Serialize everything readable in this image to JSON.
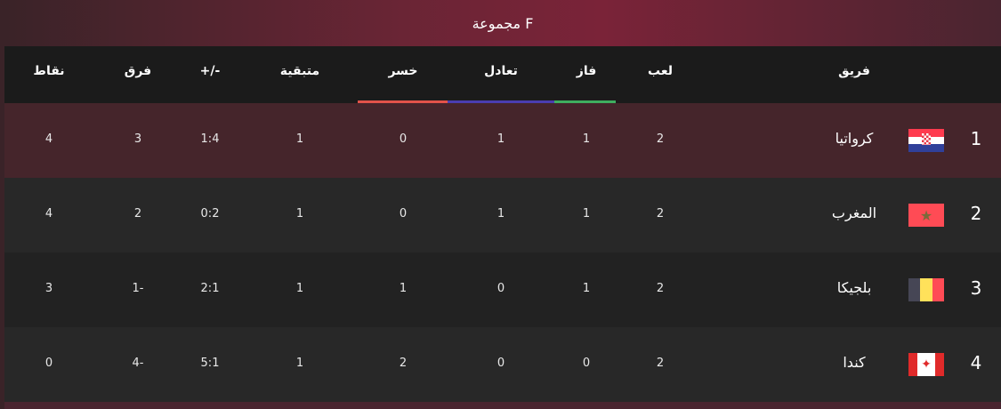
{
  "title": "مجموعة F",
  "headers": {
    "team": "فريق",
    "played": "لعب",
    "won": "فاز",
    "drawn": "تعادل",
    "lost": "خسر",
    "remaining": "متبقية",
    "goals": "+/-",
    "diff": "فرق",
    "points": "نقاط"
  },
  "underline_colors": {
    "lost": "#e2534a",
    "drawn": "#4a3db0",
    "won": "#3fae5f"
  },
  "row_colors": {
    "highlight": "#45252b",
    "even": "#282828",
    "odd": "#222222"
  },
  "rows": [
    {
      "rank": "1",
      "team": "كرواتيا",
      "flag": "croatia-flag",
      "played": "2",
      "won": "1",
      "drawn": "1",
      "lost": "0",
      "remaining": "1",
      "goals": "1:4",
      "diff": "3",
      "points": "4"
    },
    {
      "rank": "2",
      "team": "المغرب",
      "flag": "morocco-flag",
      "played": "2",
      "won": "1",
      "drawn": "1",
      "lost": "0",
      "remaining": "1",
      "goals": "0:2",
      "diff": "2",
      "points": "4"
    },
    {
      "rank": "3",
      "team": "بلجيكا",
      "flag": "belgium-flag",
      "played": "2",
      "won": "1",
      "drawn": "0",
      "lost": "1",
      "remaining": "1",
      "goals": "2:1",
      "diff": "1-",
      "points": "3"
    },
    {
      "rank": "4",
      "team": "كندا",
      "flag": "canada-flag",
      "played": "2",
      "won": "0",
      "drawn": "0",
      "lost": "2",
      "remaining": "1",
      "goals": "5:1",
      "diff": "4-",
      "points": "0"
    }
  ]
}
